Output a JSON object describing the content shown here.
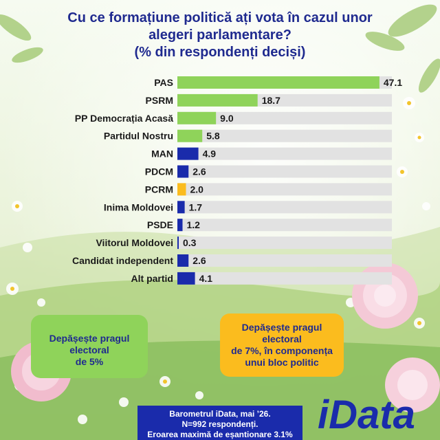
{
  "title": {
    "line1": "Cu ce formațiune politică ați vota în cazul unor",
    "line2": "alegeri parlamentare?",
    "line3": "(% din respondenți deciși)"
  },
  "chart_data": {
    "type": "bar",
    "orientation": "horizontal",
    "categories": [
      "PAS",
      "PSRM",
      "PP Democrația Acasă",
      "Partidul Nostru",
      "MAN",
      "PDCM",
      "PCRM",
      "Inima Moldovei",
      "PSDE",
      "Viitorul Moldovei",
      "Candidat independent",
      "Alt partid"
    ],
    "values": [
      47.1,
      18.7,
      9.0,
      5.8,
      4.9,
      2.6,
      2.0,
      1.7,
      1.2,
      0.3,
      2.6,
      4.1
    ],
    "labels": [
      "47.1",
      "18.7",
      "9.0",
      "5.8",
      "4.9",
      "2.6",
      "2.0",
      "1.7",
      "1.2",
      "0.3",
      "2.6",
      "4.1"
    ],
    "bar_colors": [
      "#8fd35a",
      "#8fd35a",
      "#8fd35a",
      "#8fd35a",
      "#1a2bab",
      "#1a2bab",
      "#fbbc1e",
      "#1a2bab",
      "#1a2bab",
      "#1a2bab",
      "#1a2bab",
      "#1a2bab"
    ],
    "track_color": "#e2e2e2",
    "xlim": [
      0,
      50
    ]
  },
  "legend": {
    "green": {
      "line1": "Depășește pragul",
      "line2": "electoral",
      "line3": "de 5%",
      "color": "#8fd35a"
    },
    "orange": {
      "line1": "Depășește pragul",
      "line2": "electoral",
      "line3": "de 7%, în componența",
      "line4": "unui bloc politic",
      "color": "#fbbc1e"
    }
  },
  "footer": {
    "line1": "Barometrul iData, mai ’26.",
    "line2": "N=992 respondenți.",
    "line3": "Eroarea maximă de eșantionare 3.1%"
  },
  "logo": {
    "text": "iData",
    "color": "#1a2bab",
    "icon": "idata-logo"
  },
  "colors": {
    "title": "#1f2a8f",
    "green": "#8fd35a",
    "blue": "#1a2bab",
    "orange": "#fbbc1e"
  }
}
